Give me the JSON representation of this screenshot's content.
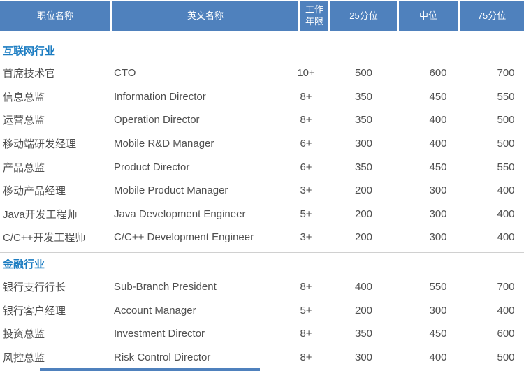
{
  "colors": {
    "header_bg": "#4f81bd",
    "header_text": "#ffffff",
    "section_title_text": "#1c7dc2",
    "body_text": "#4f4f4f",
    "divider": "#d0d0d0"
  },
  "chart_data": {
    "type": "table",
    "columns": [
      "职位名称",
      "英文名称",
      "工作年限",
      "25分位",
      "中位",
      "75分位"
    ],
    "sections": [
      {
        "title": "互联网行业",
        "rows": [
          [
            "首席技术官",
            "CTO",
            "10+",
            500,
            600,
            700
          ],
          [
            "信息总监",
            "Information Director",
            "8+",
            350,
            450,
            550
          ],
          [
            "运营总监",
            "Operation Director",
            "8+",
            350,
            400,
            500
          ],
          [
            "移动端研发经理",
            "Mobile R&D Manager",
            "6+",
            300,
            400,
            500
          ],
          [
            "产品总监",
            "Product Director",
            "6+",
            350,
            450,
            550
          ],
          [
            "移动产品经理",
            "Mobile Product Manager",
            "3+",
            200,
            300,
            400
          ],
          [
            "Java开发工程师",
            "Java Development Engineer",
            "5+",
            200,
            300,
            400
          ],
          [
            "C/C++开发工程师",
            "C/C++ Development Engineer",
            "3+",
            200,
            300,
            400
          ]
        ]
      },
      {
        "title": "金融行业",
        "rows": [
          [
            "银行支行行长",
            "Sub-Branch President",
            "8+",
            400,
            550,
            700
          ],
          [
            "银行客户经理",
            "Account Manager",
            "5+",
            200,
            300,
            400
          ],
          [
            "投资总监",
            "Investment Director",
            "8+",
            350,
            450,
            600
          ],
          [
            "风控总监",
            "Risk Control Director",
            "8+",
            300,
            400,
            500
          ]
        ]
      }
    ]
  }
}
